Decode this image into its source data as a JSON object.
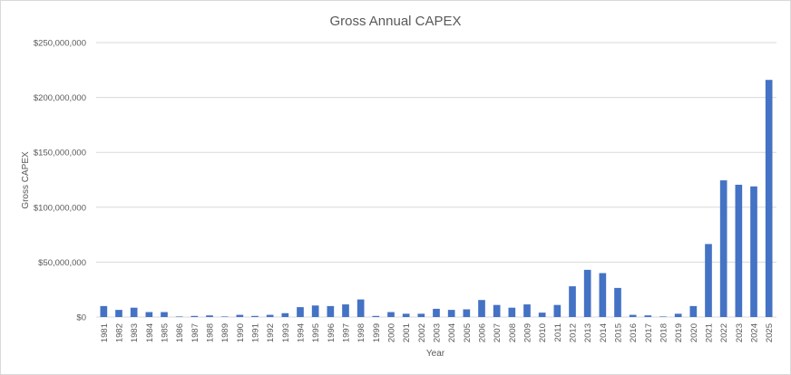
{
  "chart_data": {
    "type": "bar",
    "title": "Gross Annual CAPEX",
    "xlabel": "Year",
    "ylabel": "Gross CAPEX",
    "ylim": [
      0,
      250000000
    ],
    "y_ticks": [
      "$0",
      "$50,000,000",
      "$100,000,000",
      "$150,000,000",
      "$200,000,000",
      "$250,000,000"
    ],
    "y_tick_values": [
      0,
      50000000,
      100000000,
      150000000,
      200000000,
      250000000
    ],
    "grid": true,
    "bar_color": "#4472c4",
    "categories": [
      "1981",
      "1982",
      "1983",
      "1984",
      "1985",
      "1986",
      "1987",
      "1988",
      "1989",
      "1990",
      "1991",
      "1992",
      "1993",
      "1994",
      "1995",
      "1996",
      "1997",
      "1998",
      "1999",
      "2000",
      "2001",
      "2002",
      "2003",
      "2004",
      "2005",
      "2006",
      "2007",
      "2008",
      "2009",
      "2010",
      "2011",
      "2012",
      "2013",
      "2014",
      "2015",
      "2016",
      "2017",
      "2018",
      "2019",
      "2020",
      "2021",
      "2022",
      "2023",
      "2024",
      "2025"
    ],
    "values": [
      10000000,
      6500000,
      8500000,
      4500000,
      4500000,
      500000,
      1000000,
      1500000,
      500000,
      2000000,
      1000000,
      2000000,
      3500000,
      9000000,
      10500000,
      10000000,
      11500000,
      16000000,
      1000000,
      4500000,
      3000000,
      3000000,
      7500000,
      6500000,
      7000000,
      15500000,
      11000000,
      8500000,
      11500000,
      4000000,
      11000000,
      28000000,
      43000000,
      40000000,
      26500000,
      2000000,
      1500000,
      500000,
      3000000,
      10000000,
      66500000,
      124500000,
      120500000,
      119000000,
      216000000
    ]
  }
}
